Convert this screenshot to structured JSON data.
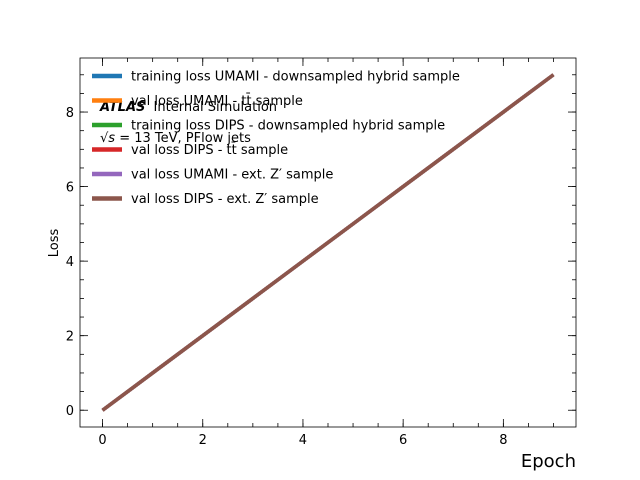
{
  "chart_data": {
    "type": "line",
    "xlabel": "Epoch",
    "ylabel": "Loss",
    "xlim": [
      -0.45,
      9.45
    ],
    "ylim": [
      -0.45,
      9.45
    ],
    "x_ticks": [
      0,
      2,
      4,
      6,
      8
    ],
    "y_ticks": [
      0,
      2,
      4,
      6,
      8
    ],
    "x_minor_step": 0.5,
    "y_minor_step": 0.5,
    "grid": false,
    "legend_position": "top-left",
    "annotations": {
      "experiment": "ATLAS",
      "status": "Internal Simulation",
      "energy_prefix": "√s",
      "energy_rest": " = 13 TeV, PFlow jets"
    },
    "x": [
      0,
      1,
      2,
      3,
      4,
      5,
      6,
      7,
      8,
      9
    ],
    "series": [
      {
        "name": "training loss UMAMI - downsampled hybrid sample",
        "color": "#1f77b4",
        "values": [
          0,
          1,
          2,
          3,
          4,
          5,
          6,
          7,
          8,
          9
        ]
      },
      {
        "name": "val loss UMAMI - tt̄ sample",
        "color": "#ff7f0e",
        "values": [
          0,
          1,
          2,
          3,
          4,
          5,
          6,
          7,
          8,
          9
        ]
      },
      {
        "name": "training loss DIPS - downsampled hybrid sample",
        "color": "#2ca02c",
        "values": [
          0,
          1,
          2,
          3,
          4,
          5,
          6,
          7,
          8,
          9
        ]
      },
      {
        "name": "val loss DIPS - tt̄ sample",
        "color": "#d62728",
        "values": [
          0,
          1,
          2,
          3,
          4,
          5,
          6,
          7,
          8,
          9
        ]
      },
      {
        "name": "val loss UMAMI - ext. Z′ sample",
        "color": "#9467bd",
        "values": [
          0,
          1,
          2,
          3,
          4,
          5,
          6,
          7,
          8,
          9
        ]
      },
      {
        "name": "val loss DIPS - ext. Z′ sample",
        "color": "#8c564b",
        "values": [
          0,
          1,
          2,
          3,
          4,
          5,
          6,
          7,
          8,
          9
        ]
      }
    ]
  }
}
